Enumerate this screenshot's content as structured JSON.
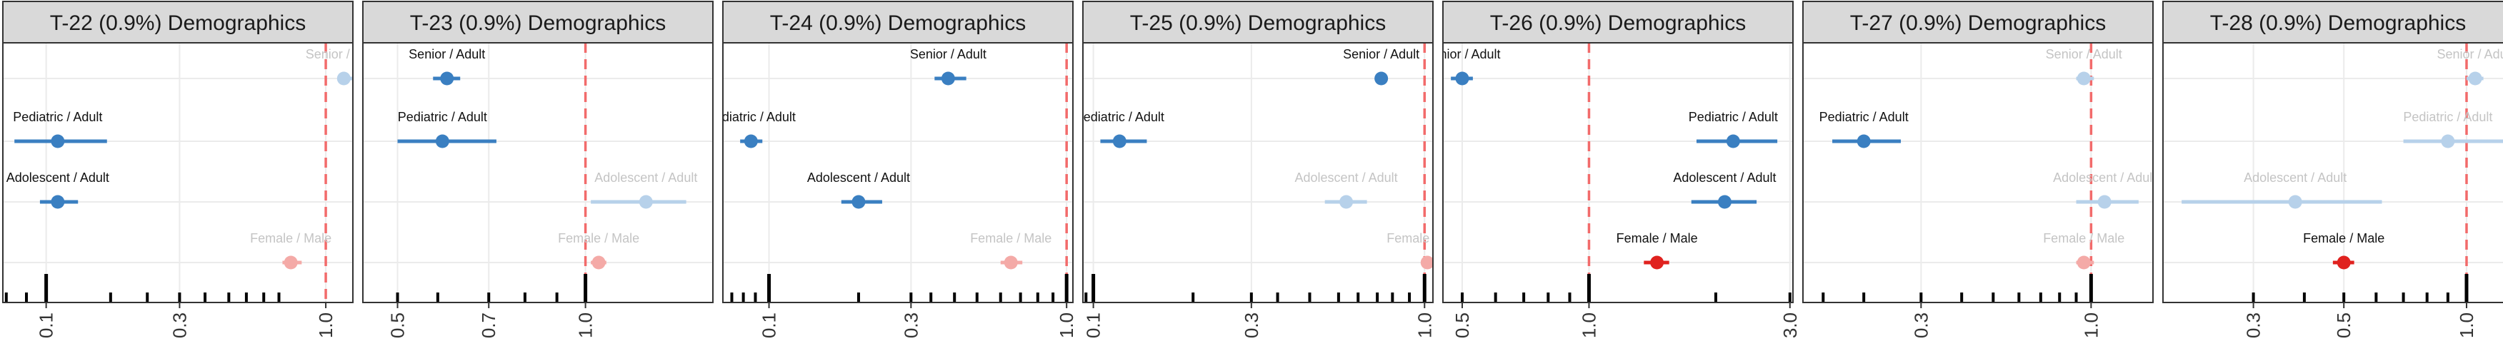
{
  "colors": {
    "significant_blue": "#3a7fc1",
    "faded_blue": "#b7d1ea",
    "significant_red": "#e0221f",
    "faded_red": "#f4aaa7",
    "reference_line": "#f26b6b",
    "strip_fill": "#d9d9d9",
    "grid": "#ebebeb",
    "frame": "#333333",
    "label_dark": "#111111",
    "label_faded": "#c4c4c4"
  },
  "chart_data": [
    {
      "type": "scatter",
      "title": "T-22 (0.9%) Demographics",
      "x_scale": "log",
      "xlim": [
        0.07,
        1.25
      ],
      "ticks": [
        0.1,
        0.3,
        1.0
      ],
      "tick_labels": [
        "0.1",
        "0.3",
        "1.0"
      ],
      "rug": [
        0.072,
        0.085,
        0.1,
        0.17,
        0.23,
        0.3,
        0.37,
        0.45,
        0.52,
        0.6,
        0.68
      ],
      "points": [
        {
          "label": "Senior / Adult",
          "estimate": 1.16,
          "low": 1.1,
          "high": 1.25,
          "significant": false,
          "group": "age"
        },
        {
          "label": "Pediatric / Adult",
          "estimate": 0.11,
          "low": 0.077,
          "high": 0.165,
          "significant": true,
          "group": "age"
        },
        {
          "label": "Adolescent / Adult",
          "estimate": 0.11,
          "low": 0.095,
          "high": 0.13,
          "significant": true,
          "group": "age"
        },
        {
          "label": "Female / Male",
          "estimate": 0.75,
          "low": 0.7,
          "high": 0.82,
          "significant": false,
          "group": "sex"
        }
      ]
    },
    {
      "type": "scatter",
      "title": "T-23 (0.9%) Demographics",
      "x_scale": "log",
      "xlim": [
        0.44,
        1.6
      ],
      "ticks": [
        0.5,
        0.7,
        1.0
      ],
      "tick_labels": [
        "0.5",
        "0.7",
        "1.0"
      ],
      "rug": [
        0.5,
        0.58,
        0.7,
        0.8,
        0.9,
        1.0
      ],
      "points": [
        {
          "label": "Senior / Adult",
          "estimate": 0.6,
          "low": 0.57,
          "high": 0.63,
          "significant": true,
          "group": "age"
        },
        {
          "label": "Pediatric / Adult",
          "estimate": 0.59,
          "low": 0.5,
          "high": 0.72,
          "significant": true,
          "group": "age"
        },
        {
          "label": "Adolescent / Adult",
          "estimate": 1.25,
          "low": 1.02,
          "high": 1.45,
          "significant": false,
          "group": "age"
        },
        {
          "label": "Female / Male",
          "estimate": 1.05,
          "low": 1.02,
          "high": 1.08,
          "significant": false,
          "group": "sex"
        }
      ]
    },
    {
      "type": "scatter",
      "title": "T-24 (0.9%) Demographics",
      "x_scale": "log",
      "xlim": [
        0.07,
        1.05
      ],
      "ticks": [
        0.1,
        0.3,
        1.0
      ],
      "tick_labels": [
        "0.1",
        "0.3",
        "1.0"
      ],
      "rug": [
        0.075,
        0.082,
        0.09,
        0.1,
        0.2,
        0.3,
        0.35,
        0.42,
        0.5,
        0.6,
        0.7,
        0.8,
        0.9,
        1.0
      ],
      "points": [
        {
          "label": "Senior / Adult",
          "estimate": 0.4,
          "low": 0.36,
          "high": 0.46,
          "significant": true,
          "group": "age"
        },
        {
          "label": "Pediatric / Adult",
          "estimate": 0.087,
          "low": 0.08,
          "high": 0.095,
          "significant": true,
          "group": "age"
        },
        {
          "label": "Adolescent / Adult",
          "estimate": 0.2,
          "low": 0.175,
          "high": 0.24,
          "significant": true,
          "group": "age"
        },
        {
          "label": "Female / Male",
          "estimate": 0.65,
          "low": 0.6,
          "high": 0.71,
          "significant": false,
          "group": "sex"
        }
      ]
    },
    {
      "type": "scatter",
      "title": "T-25 (0.9%) Demographics",
      "x_scale": "log",
      "xlim": [
        0.093,
        1.06
      ],
      "ticks": [
        0.1,
        0.3,
        1.0
      ],
      "tick_labels": [
        "0.1",
        "0.3",
        "1.0"
      ],
      "rug": [
        0.095,
        0.1,
        0.2,
        0.3,
        0.36,
        0.45,
        0.55,
        0.63,
        0.72,
        0.8,
        0.9,
        1.0
      ],
      "points": [
        {
          "label": "Senior / Adult",
          "estimate": 0.74,
          "low": 0.71,
          "high": 0.77,
          "significant": true,
          "group": "age"
        },
        {
          "label": "Pediatric / Adult",
          "estimate": 0.12,
          "low": 0.105,
          "high": 0.145,
          "significant": true,
          "group": "age"
        },
        {
          "label": "Adolescent / Adult",
          "estimate": 0.58,
          "low": 0.5,
          "high": 0.67,
          "significant": false,
          "group": "age"
        },
        {
          "label": "Female / Male",
          "estimate": 1.02,
          "low": 0.98,
          "high": 1.05,
          "significant": false,
          "group": "sex"
        }
      ]
    },
    {
      "type": "scatter",
      "title": "T-26 (0.9%) Demographics",
      "x_scale": "log",
      "xlim": [
        0.45,
        3.05
      ],
      "ticks": [
        0.5,
        1.0,
        3.0
      ],
      "tick_labels": [
        "0.5",
        "1.0",
        "3.0"
      ],
      "rug": [
        0.5,
        0.6,
        0.7,
        0.8,
        0.9,
        1.0,
        2.0,
        3.0
      ],
      "points": [
        {
          "label": "Senior / Adult",
          "estimate": 0.5,
          "low": 0.47,
          "high": 0.53,
          "significant": true,
          "group": "age"
        },
        {
          "label": "Pediatric / Adult",
          "estimate": 2.2,
          "low": 1.8,
          "high": 2.8,
          "significant": true,
          "group": "age"
        },
        {
          "label": "Adolescent / Adult",
          "estimate": 2.1,
          "low": 1.75,
          "high": 2.5,
          "significant": true,
          "group": "age"
        },
        {
          "label": "Female / Male",
          "estimate": 1.45,
          "low": 1.35,
          "high": 1.55,
          "significant": true,
          "group": "sex"
        }
      ]
    },
    {
      "type": "scatter",
      "title": "T-27 (0.9%) Demographics",
      "x_scale": "log",
      "xlim": [
        0.13,
        1.55
      ],
      "ticks": [
        0.3,
        1.0
      ],
      "tick_labels": [
        "0.3",
        "1.0"
      ],
      "rug": [
        0.15,
        0.2,
        0.3,
        0.4,
        0.5,
        0.6,
        0.7,
        0.8,
        0.9,
        1.0
      ],
      "points": [
        {
          "label": "Senior / Adult",
          "estimate": 0.95,
          "low": 0.9,
          "high": 1.02,
          "significant": false,
          "group": "age"
        },
        {
          "label": "Pediatric / Adult",
          "estimate": 0.2,
          "low": 0.16,
          "high": 0.26,
          "significant": true,
          "group": "age"
        },
        {
          "label": "Adolescent / Adult",
          "estimate": 1.1,
          "low": 0.9,
          "high": 1.4,
          "significant": false,
          "group": "age"
        },
        {
          "label": "Female / Male",
          "estimate": 0.95,
          "low": 0.9,
          "high": 1.02,
          "significant": false,
          "group": "sex"
        }
      ]
    },
    {
      "type": "scatter",
      "title": "T-28 (0.9%) Demographics",
      "x_scale": "log",
      "xlim": [
        0.18,
        1.3
      ],
      "ticks": [
        0.3,
        0.5,
        1.0
      ],
      "tick_labels": [
        "0.3",
        "0.5",
        "1.0"
      ],
      "rug": [
        0.3,
        0.4,
        0.5,
        0.6,
        0.7,
        0.8,
        0.9,
        1.0
      ],
      "points": [
        {
          "label": "Senior / Adult",
          "estimate": 1.05,
          "low": 1.0,
          "high": 1.1,
          "significant": false,
          "group": "age"
        },
        {
          "label": "Pediatric / Adult",
          "estimate": 0.9,
          "low": 0.7,
          "high": 1.3,
          "significant": false,
          "group": "age"
        },
        {
          "label": "Adolescent / Adult",
          "estimate": 0.38,
          "low": 0.2,
          "high": 0.62,
          "significant": false,
          "group": "age"
        },
        {
          "label": "Female / Male",
          "estimate": 0.5,
          "low": 0.47,
          "high": 0.53,
          "significant": true,
          "group": "sex"
        }
      ]
    }
  ]
}
